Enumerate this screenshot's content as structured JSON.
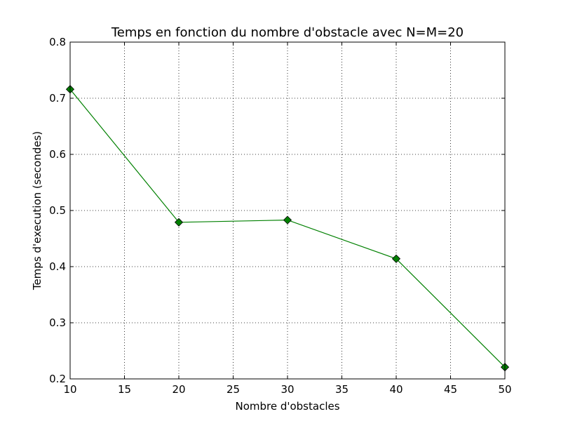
{
  "chart_data": {
    "type": "line",
    "title": "Temps en fonction du nombre d'obstacle avec N=M=20",
    "xlabel": "Nombre d'obstacles",
    "ylabel": "Temps d'execution (secondes)",
    "xlim": [
      10,
      50
    ],
    "ylim": [
      0.2,
      0.8
    ],
    "x_ticks": [
      10,
      15,
      20,
      25,
      30,
      35,
      40,
      45,
      50
    ],
    "y_ticks": [
      0.2,
      0.3,
      0.4,
      0.5,
      0.6,
      0.7,
      0.8
    ],
    "x_tick_labels": [
      "10",
      "15",
      "20",
      "25",
      "30",
      "35",
      "40",
      "45",
      "50"
    ],
    "y_tick_labels": [
      "0.2",
      "0.3",
      "0.4",
      "0.5",
      "0.6",
      "0.7",
      "0.8"
    ],
    "grid": true,
    "series": [
      {
        "x": [
          10,
          20,
          30,
          40,
          50
        ],
        "y": [
          0.716,
          0.479,
          0.483,
          0.414,
          0.221
        ],
        "color": "#008000",
        "marker": "diamond",
        "marker_color": "#008000"
      }
    ]
  }
}
